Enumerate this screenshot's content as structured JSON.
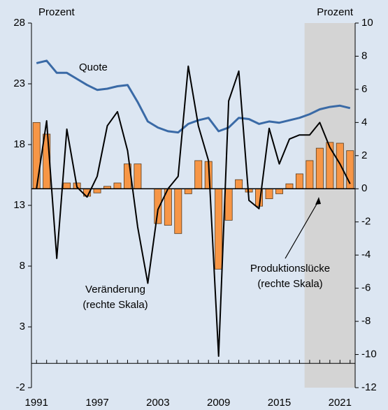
{
  "chart_data": {
    "type": "combo",
    "x": [
      1991,
      1992,
      1993,
      1994,
      1995,
      1996,
      1997,
      1998,
      1999,
      2000,
      2001,
      2002,
      2003,
      2004,
      2005,
      2006,
      2007,
      2008,
      2009,
      2010,
      2011,
      2012,
      2013,
      2014,
      2015,
      2016,
      2017,
      2018,
      2019,
      2020,
      2021,
      2022
    ],
    "xlim": [
      1990.5,
      2022.5
    ],
    "xticks": [
      1991,
      1997,
      2003,
      2009,
      2015,
      2021
    ],
    "ylabel": "Prozent",
    "y2label": "Prozent",
    "ylim": [
      -2,
      28
    ],
    "yticks": [
      -2,
      3,
      8,
      13,
      18,
      23,
      28
    ],
    "y2lim": [
      -12,
      10
    ],
    "y2ticks": [
      -12,
      -10,
      -8,
      -6,
      -4,
      -2,
      0,
      2,
      4,
      6,
      8,
      10
    ],
    "shaded_from": 2018,
    "shade_color": "#d4d4d4",
    "series": [
      {
        "name": "Quote",
        "type": "line",
        "color": "#3a6aa6",
        "axis": "y",
        "values": [
          24.7,
          24.9,
          23.9,
          23.9,
          23.4,
          22.9,
          22.5,
          22.6,
          22.8,
          22.9,
          21.5,
          19.9,
          19.4,
          19.1,
          19.0,
          19.7,
          20.0,
          20.2,
          19.1,
          19.4,
          20.2,
          20.1,
          19.7,
          19.9,
          19.8,
          20.0,
          20.2,
          20.5,
          20.9,
          21.1,
          21.2,
          21.0
        ]
      },
      {
        "name": "Veränderung",
        "note": "(rechte Skala)",
        "type": "line",
        "color": "#000000",
        "axis": "y2",
        "values": [
          0,
          4.1,
          -4.2,
          3.6,
          0.1,
          -0.5,
          0.75,
          3.8,
          4.65,
          2.3,
          -2.3,
          -5.7,
          -1.25,
          0,
          0.75,
          7.4,
          3.8,
          1.7,
          -10.1,
          5.3,
          7.1,
          -0.7,
          -1.2,
          3.65,
          1.5,
          3.0,
          3.25,
          3.25,
          4.0,
          2.5,
          1.5,
          0.3
        ]
      },
      {
        "name": "Produktionslücke",
        "note": "(rechte Skala)",
        "type": "bar",
        "color": "#f79646",
        "axis": "y2",
        "values": [
          4.0,
          3.3,
          0,
          0.35,
          0.35,
          -0.45,
          -0.25,
          0.15,
          0.35,
          1.5,
          1.5,
          0,
          -2.1,
          -2.2,
          -2.7,
          -0.3,
          1.7,
          1.65,
          -4.85,
          -1.9,
          0.55,
          -0.2,
          -1.05,
          -0.6,
          -0.3,
          0.3,
          0.9,
          1.7,
          2.45,
          2.8,
          2.75,
          2.3
        ]
      }
    ]
  }
}
